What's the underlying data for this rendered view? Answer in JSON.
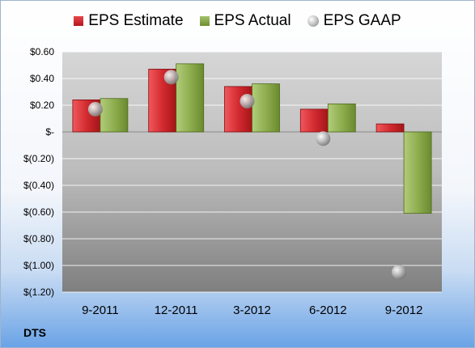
{
  "chart_data": {
    "type": "bar",
    "categories": [
      "9-2011",
      "12-2011",
      "3-2012",
      "6-2012",
      "9-2012"
    ],
    "series": [
      {
        "name": "EPS Estimate",
        "type": "bar",
        "color": "#c9252a",
        "values": [
          0.24,
          0.47,
          0.34,
          0.17,
          0.06
        ]
      },
      {
        "name": "EPS Actual",
        "type": "bar",
        "color": "#86a847",
        "values": [
          0.25,
          0.51,
          0.36,
          0.21,
          -0.61
        ]
      },
      {
        "name": "EPS GAAP",
        "type": "point",
        "color": "#b5b5b5",
        "values": [
          0.17,
          0.41,
          0.23,
          -0.05,
          -1.05
        ]
      }
    ],
    "ylim": [
      -1.2,
      0.6
    ],
    "yticks": [
      0.6,
      0.4,
      0.2,
      0,
      -0.2,
      -0.4,
      -0.6,
      -0.8,
      -1.0,
      -1.2
    ],
    "ytick_labels": [
      "$0.60",
      "$0.40",
      "$0.20",
      "$-",
      "$(0.20)",
      "$(0.40)",
      "$(0.60)",
      "$(0.80)",
      "$(1.00)",
      "$(1.20)"
    ],
    "grid": true,
    "legend_position": "top"
  },
  "ticker": "DTS"
}
